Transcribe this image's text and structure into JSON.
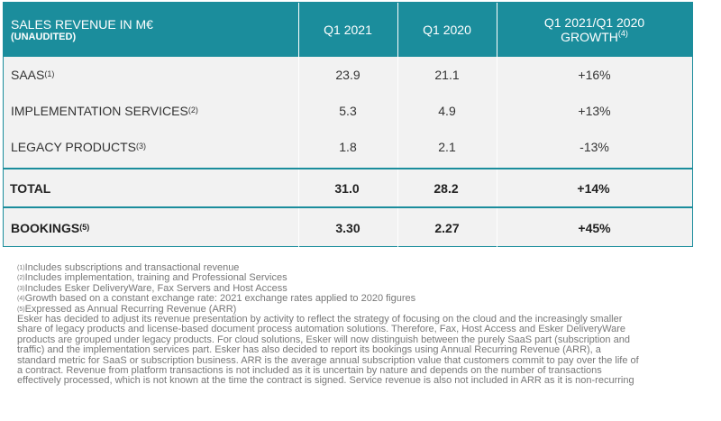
{
  "table": {
    "header": {
      "title": "SALES REVENUE IN M€",
      "subtitle": "(UNAUDITED)",
      "col1": "Q1 2021",
      "col2": "Q1 2020",
      "col3_line1": "Q1 2021/Q1 2020",
      "col3_line2": "GROWTH",
      "col3_note": "(4)"
    },
    "rows": [
      {
        "label": "SAAS ",
        "note": "(1)",
        "q1_2021": "23.9",
        "q1_2020": "21.1",
        "growth": "+16%"
      },
      {
        "label": "IMPLEMENTATION SERVICES",
        "note": "(2)",
        "q1_2021": "5.3",
        "q1_2020": "4.9",
        "growth": "+13%"
      },
      {
        "label": "LEGACY PRODUCTS",
        "note": "(3)",
        "q1_2021": "1.8",
        "q1_2020": "2.1",
        "growth": "-13%"
      },
      {
        "label": "TOTAL",
        "note": null,
        "q1_2021": "31.0",
        "q1_2020": "28.2",
        "growth": "+14%"
      },
      {
        "label": "BOOKINGS",
        "note": "(5)",
        "q1_2021": "3.30",
        "q1_2020": "2.27",
        "growth": "+45%"
      }
    ]
  },
  "footnotes": [
    {
      "num": "(1)",
      "text": "Includes subscriptions and transactional revenue"
    },
    {
      "num": "(2)",
      "text": "Includes implementation, training and Professional Services"
    },
    {
      "num": "(3)",
      "text": "Includes Esker DeliveryWare, Fax Servers and Host Access"
    },
    {
      "num": "(4)",
      "text": "Growth based on a constant exchange rate: 2021 exchange rates applied to 2020 figures"
    },
    {
      "num": "(5)",
      "text": "Expressed as Annual Recurring Revenue (ARR)"
    }
  ],
  "paragraph": [
    "Esker has decided to adjust its revenue presentation by activity to reflect the strategy of focusing on the cloud and the increasingly smaller",
    "share of legacy products and license-based document process automation solutions. Therefore, Fax, Host Access and Esker DeliveryWare",
    "products are grouped under legacy products. For cloud solutions, Esker will now distinguish between the purely SaaS part (subscription and",
    "traffic) and the implementation services part. Esker has also decided to report its bookings using Annual Recurring Revenue (ARR), a",
    "standard metric for SaaS or subscription business. ARR is the average annual subscription value that customers commit to pay over the life of",
    "a contract. Revenue from platform transactions is not included as it is uncertain by nature and depends on the number of transactions",
    "effectively processed, which is not known at the time the contract is signed. Service revenue is also not included in ARR as it is non-recurring"
  ]
}
